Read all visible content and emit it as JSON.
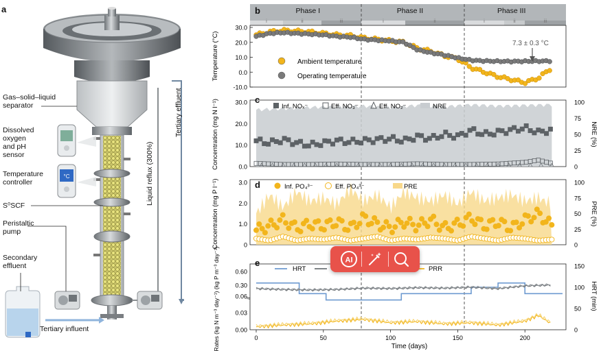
{
  "panel_a": {
    "letter": "a",
    "labels": {
      "gas_solid_liquid": [
        "Gas–solid–liquid",
        "separator"
      ],
      "do_ph": [
        "Dissolved",
        "oxygen",
        "and pH",
        "sensor"
      ],
      "temp_controller": [
        "Temperature",
        "controller"
      ],
      "s0scf": "S⁰SCF",
      "peristaltic": [
        "Peristaltic",
        "pump"
      ],
      "secondary": [
        "Secondary",
        "effluent"
      ],
      "tertiary_influent": "Tertiary influent",
      "liquid_reflux": "Liquid reflux (300%)",
      "tertiary_effluent": "Tertiary effluent"
    }
  },
  "chart_data": [
    {
      "panel": "b",
      "type": "line",
      "phases": [
        {
          "name": "Phase I",
          "sub": [
            "i",
            "ii",
            "iii"
          ],
          "range": [
            0,
            77
          ]
        },
        {
          "name": "Phase II",
          "sub": [
            "i",
            "ii"
          ],
          "range": [
            77,
            152
          ]
        },
        {
          "name": "Phase III",
          "sub": [
            "i",
            "ii",
            "iii"
          ],
          "range": [
            152,
            228
          ]
        }
      ],
      "ylabel": "Temperature (°C)",
      "ylim": [
        -10,
        30
      ],
      "yticks": [
        "30.0",
        "20.0",
        "10.0",
        "0.0",
        "-10.0"
      ],
      "annotation": "7.3 ± 0.3 °C",
      "series": [
        {
          "name": "Ambient temperature",
          "color": "#f2b51c",
          "x": [
            0,
            10,
            20,
            30,
            40,
            50,
            60,
            70,
            80,
            90,
            100,
            110,
            120,
            130,
            140,
            150,
            160,
            170,
            180,
            190,
            200,
            210,
            220
          ],
          "y": [
            25,
            27,
            28,
            27.5,
            27,
            26,
            25,
            24.5,
            23,
            22,
            21,
            20,
            16,
            14,
            11,
            9,
            3,
            0,
            -3,
            -5,
            -7,
            -4,
            3
          ]
        },
        {
          "name": "Operating temperature",
          "color": "#7a7a7a",
          "x": [
            0,
            10,
            20,
            30,
            40,
            50,
            60,
            70,
            80,
            90,
            100,
            110,
            120,
            130,
            140,
            150,
            160,
            170,
            180,
            190,
            200,
            210,
            220
          ],
          "y": [
            24,
            26,
            26.5,
            26,
            25.5,
            25,
            24,
            23.5,
            22,
            21.5,
            21,
            20,
            15,
            13,
            11.5,
            9.5,
            8,
            7.5,
            7.3,
            7.2,
            7.3,
            7.4,
            7.5
          ]
        }
      ]
    },
    {
      "panel": "c",
      "type": "scatter",
      "ylabel": "Concentration (mg N l⁻¹)",
      "ylim": [
        0,
        30
      ],
      "yticks": [
        "30.0",
        "20.0",
        "10.0",
        "0.0"
      ],
      "y2label": "NRE (%)",
      "y2lim": [
        0,
        100
      ],
      "y2ticks": [
        "100",
        "75",
        "50",
        "25",
        "0"
      ],
      "legend": [
        "Inf. NOₓ⁻",
        "Eff. NO₃⁻",
        "Eff. NO₂⁻",
        "NRE"
      ],
      "series": [
        {
          "name": "Inf. NOx",
          "color": "#5d6266",
          "x": [
            0,
            10,
            20,
            30,
            40,
            50,
            60,
            70,
            80,
            90,
            100,
            110,
            120,
            130,
            140,
            150,
            160,
            170,
            180,
            190,
            200,
            210,
            220
          ],
          "y": [
            12,
            11,
            12.5,
            11,
            10,
            11,
            12,
            11.5,
            12,
            12.5,
            13,
            12,
            14,
            13,
            15,
            14,
            17,
            15,
            16,
            17,
            18,
            16,
            17
          ]
        },
        {
          "name": "Eff. NO3",
          "color": "#5d6266",
          "x": [
            0,
            20,
            40,
            60,
            80,
            100,
            120,
            140,
            160,
            180,
            200,
            210,
            220
          ],
          "y": [
            1.5,
            1,
            1,
            1.2,
            1,
            1,
            1.3,
            1,
            1,
            1.2,
            2,
            3,
            1.5
          ]
        },
        {
          "name": "NRE",
          "color": "#c8ccd0",
          "x": [
            0,
            20,
            40,
            60,
            80,
            100,
            120,
            140,
            160,
            180,
            200,
            220
          ],
          "y": [
            88,
            90,
            92,
            93,
            94,
            92,
            95,
            93,
            96,
            94,
            95,
            96
          ]
        }
      ]
    },
    {
      "panel": "d",
      "type": "scatter",
      "ylabel": "Concentration (mg P l⁻¹)",
      "ylim": [
        0,
        3
      ],
      "yticks": [
        "3.0",
        "2.0",
        "1.0",
        "0"
      ],
      "y2label": "PRE (%)",
      "y2lim": [
        0,
        100
      ],
      "y2ticks": [
        "100",
        "75",
        "50",
        "25",
        "0"
      ],
      "legend": [
        "Inf. PO₄³⁻",
        "Eff. PO₄³⁻",
        "PRE"
      ],
      "series": [
        {
          "name": "Inf. PO4",
          "color": "#f2b51c",
          "x": [
            0,
            10,
            20,
            30,
            40,
            50,
            60,
            70,
            80,
            90,
            100,
            110,
            120,
            130,
            140,
            150,
            160,
            170,
            180,
            190,
            200,
            210,
            220
          ],
          "y": [
            0.7,
            0.9,
            1.2,
            0.8,
            1.0,
            0.9,
            1.1,
            0.8,
            1.3,
            1.0,
            0.8,
            1.1,
            0.9,
            1.2,
            0.8,
            1.0,
            1.3,
            0.9,
            1.1,
            0.8,
            1.2,
            1.5,
            0.9
          ]
        },
        {
          "name": "Eff. PO4",
          "color": "#f2b51c",
          "x": [
            0,
            10,
            20,
            30,
            40,
            50,
            60,
            70,
            80,
            90,
            100,
            110,
            120,
            130,
            140,
            150,
            160,
            170,
            180,
            190,
            200,
            210,
            220
          ],
          "y": [
            0.3,
            0.2,
            0.4,
            0.2,
            0.3,
            0.25,
            0.35,
            0.2,
            0.3,
            0.4,
            0.2,
            0.3,
            0.25,
            0.35,
            0.3,
            0.2,
            0.4,
            0.3,
            0.2,
            0.35,
            0.3,
            0.2,
            0.25
          ]
        },
        {
          "name": "PRE",
          "color": "#f8d88a",
          "x": [
            0,
            10,
            20,
            30,
            40,
            50,
            60,
            70,
            80,
            90,
            100,
            110,
            120,
            130,
            140,
            150,
            160,
            170,
            180,
            190,
            200,
            210,
            220
          ],
          "y": [
            50,
            80,
            60,
            85,
            70,
            75,
            65,
            90,
            70,
            80,
            60,
            85,
            75,
            70,
            80,
            65,
            85,
            70,
            75,
            80,
            70,
            75,
            65
          ]
        }
      ]
    },
    {
      "panel": "e",
      "type": "line",
      "xlabel": "Time (days)",
      "xticks": [
        "0",
        "50",
        "100",
        "150",
        "200"
      ],
      "xlim": [
        0,
        228
      ],
      "ylabel": "Rates (kg N m⁻³ day⁻¹) (kg P m⁻³ day⁻¹)",
      "yticks_upper": [
        "0.60",
        "0.30",
        "0.06"
      ],
      "yticks_lower": [
        "0.03",
        "0.00"
      ],
      "y2label": "HRT (min)",
      "y2ticks": [
        "150",
        "100",
        "50",
        "0"
      ],
      "legend": [
        "HRT",
        "NRR",
        "PRR"
      ],
      "series": [
        {
          "name": "HRT",
          "color": "#6d9ad0",
          "x": [
            0,
            32,
            32,
            52,
            52,
            108,
            108,
            160,
            160,
            180,
            180,
            200,
            200,
            228
          ],
          "y": [
            110,
            110,
            85,
            85,
            70,
            70,
            85,
            85,
            100,
            100,
            110,
            110,
            85,
            85
          ]
        },
        {
          "name": "NRR",
          "color": "#6d7276",
          "x": [
            0,
            20,
            40,
            60,
            80,
            100,
            120,
            140,
            160,
            180,
            200,
            220
          ],
          "y": [
            0.22,
            0.2,
            0.19,
            0.2,
            0.23,
            0.22,
            0.24,
            0.23,
            0.25,
            0.22,
            0.28,
            0.3
          ]
        },
        {
          "name": "PRR",
          "color": "#f2b51c",
          "x": [
            0,
            20,
            40,
            60,
            80,
            100,
            120,
            140,
            160,
            180,
            200,
            210,
            220
          ],
          "y": [
            0.005,
            0.008,
            0.01,
            0.015,
            0.018,
            0.012,
            0.014,
            0.01,
            0.012,
            0.008,
            0.015,
            0.025,
            0.01
          ]
        }
      ]
    }
  ],
  "panels": {
    "b": "b",
    "c": "c",
    "d": "d",
    "e": "e"
  },
  "toolbar": {
    "ai_label": "AI",
    "edit_label": "magic-edit",
    "search_label": "search"
  }
}
